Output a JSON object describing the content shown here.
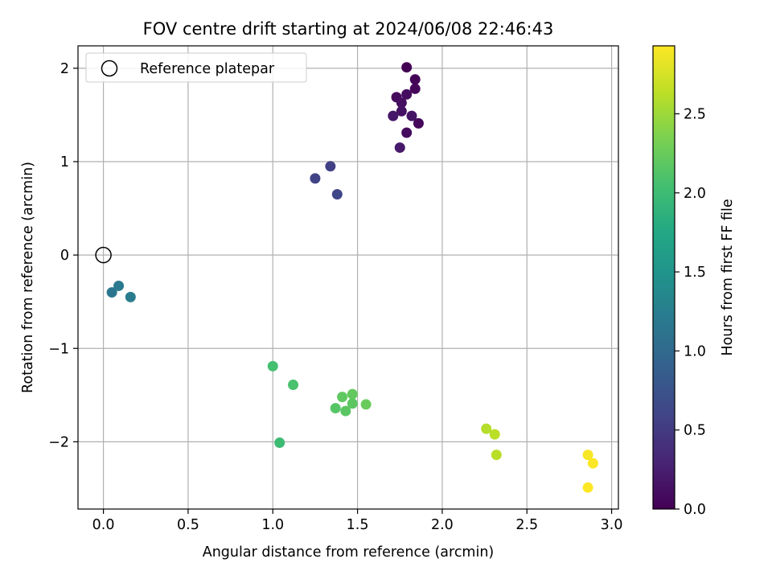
{
  "chart_data": {
    "type": "scatter",
    "title": "FOV centre drift starting at 2024/06/08 22:46:43",
    "xlabel": "Angular distance from reference (arcmin)",
    "ylabel": "Rotation from reference (arcmin)",
    "xlim": [
      -0.15,
      3.04
    ],
    "ylim": [
      -2.72,
      2.24
    ],
    "x_ticks": [
      0.0,
      0.5,
      1.0,
      1.5,
      2.0,
      2.5,
      3.0
    ],
    "x_tick_labels": [
      "0.0",
      "0.5",
      "1.0",
      "1.5",
      "2.0",
      "2.5",
      "3.0"
    ],
    "y_ticks": [
      -2,
      -1,
      0,
      1,
      2
    ],
    "y_tick_labels": [
      "−2",
      "−1",
      "0",
      "1",
      "2"
    ],
    "grid": true,
    "legend": {
      "placement": "upper-left",
      "label": "Reference platepar"
    },
    "reference_point": {
      "x": 0.0,
      "y": 0.0
    },
    "colorbar": {
      "label": "Hours from first FF file",
      "colormap": "viridis",
      "range": [
        0.0,
        2.93
      ],
      "ticks": [
        0.0,
        0.5,
        1.0,
        1.5,
        2.0,
        2.5
      ],
      "tick_labels": [
        "0.0",
        "0.5",
        "1.0",
        "1.5",
        "2.0",
        "2.5"
      ]
    },
    "points": [
      {
        "x": 1.79,
        "y": 2.01,
        "hours": 0.0
      },
      {
        "x": 1.84,
        "y": 1.88,
        "hours": 0.03
      },
      {
        "x": 1.84,
        "y": 1.78,
        "hours": 0.05
      },
      {
        "x": 1.73,
        "y": 1.69,
        "hours": 0.08
      },
      {
        "x": 1.79,
        "y": 1.72,
        "hours": 0.1
      },
      {
        "x": 1.76,
        "y": 1.63,
        "hours": 0.12
      },
      {
        "x": 1.76,
        "y": 1.54,
        "hours": 0.14
      },
      {
        "x": 1.82,
        "y": 1.49,
        "hours": 0.16
      },
      {
        "x": 1.71,
        "y": 1.49,
        "hours": 0.18
      },
      {
        "x": 1.86,
        "y": 1.41,
        "hours": 0.05
      },
      {
        "x": 1.79,
        "y": 1.31,
        "hours": 0.09
      },
      {
        "x": 1.75,
        "y": 1.15,
        "hours": 0.2
      },
      {
        "x": 1.25,
        "y": 0.82,
        "hours": 0.58
      },
      {
        "x": 1.34,
        "y": 0.95,
        "hours": 0.55
      },
      {
        "x": 1.38,
        "y": 0.65,
        "hours": 0.62
      },
      {
        "x": 0.05,
        "y": -0.4,
        "hours": 1.15
      },
      {
        "x": 0.09,
        "y": -0.33,
        "hours": 1.18
      },
      {
        "x": 0.16,
        "y": -0.45,
        "hours": 1.22
      },
      {
        "x": 1.0,
        "y": -1.19,
        "hours": 2.05
      },
      {
        "x": 1.12,
        "y": -1.39,
        "hours": 2.08
      },
      {
        "x": 1.04,
        "y": -2.01,
        "hours": 2.0
      },
      {
        "x": 1.41,
        "y": -1.52,
        "hours": 2.2
      },
      {
        "x": 1.47,
        "y": -1.49,
        "hours": 2.22
      },
      {
        "x": 1.47,
        "y": -1.59,
        "hours": 2.18
      },
      {
        "x": 1.55,
        "y": -1.6,
        "hours": 2.25
      },
      {
        "x": 1.37,
        "y": -1.64,
        "hours": 2.15
      },
      {
        "x": 1.43,
        "y": -1.67,
        "hours": 2.17
      },
      {
        "x": 2.26,
        "y": -1.86,
        "hours": 2.6
      },
      {
        "x": 2.31,
        "y": -1.92,
        "hours": 2.63
      },
      {
        "x": 2.32,
        "y": -2.14,
        "hours": 2.62
      },
      {
        "x": 2.86,
        "y": -2.14,
        "hours": 2.9
      },
      {
        "x": 2.89,
        "y": -2.23,
        "hours": 2.92
      },
      {
        "x": 2.86,
        "y": -2.49,
        "hours": 2.93
      }
    ]
  }
}
